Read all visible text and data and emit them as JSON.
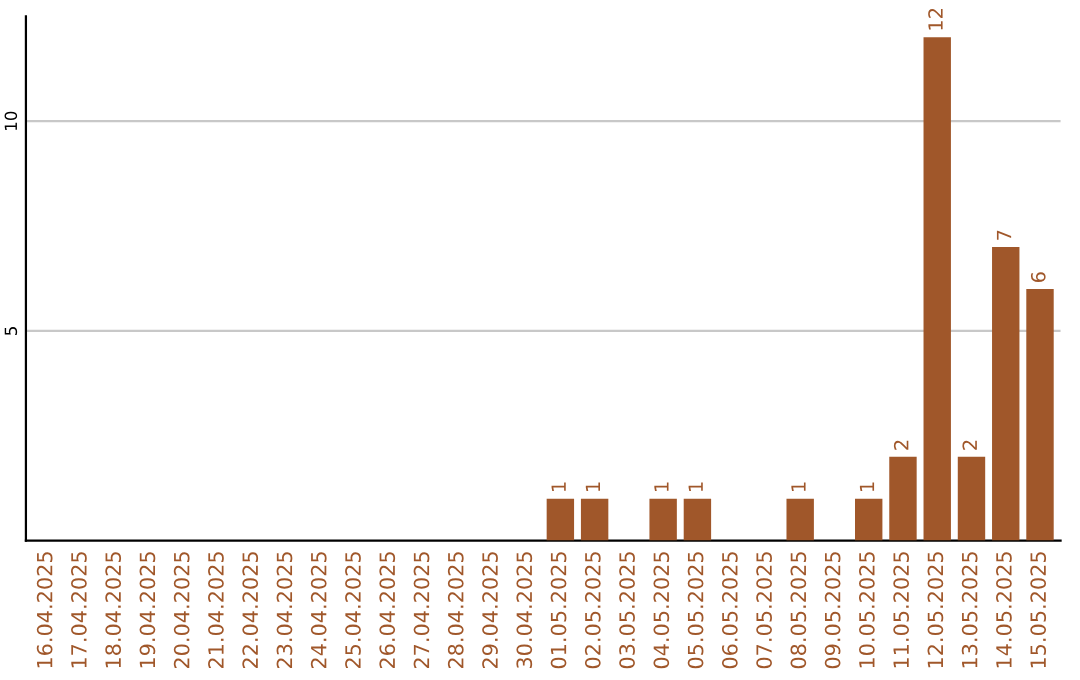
{
  "chart_data": {
    "type": "bar",
    "categories": [
      "16.04.2025",
      "17.04.2025",
      "18.04.2025",
      "19.04.2025",
      "20.04.2025",
      "21.04.2025",
      "22.04.2025",
      "23.04.2025",
      "24.04.2025",
      "25.04.2025",
      "26.04.2025",
      "27.04.2025",
      "28.04.2025",
      "29.04.2025",
      "30.04.2025",
      "01.05.2025",
      "02.05.2025",
      "03.05.2025",
      "04.05.2025",
      "05.05.2025",
      "06.05.2025",
      "07.05.2025",
      "08.05.2025",
      "09.05.2025",
      "10.05.2025",
      "11.05.2025",
      "12.05.2025",
      "13.05.2025",
      "14.05.2025",
      "15.05.2025"
    ],
    "values": [
      0,
      0,
      0,
      0,
      0,
      0,
      0,
      0,
      0,
      0,
      0,
      0,
      0,
      0,
      0,
      1,
      1,
      0,
      1,
      1,
      0,
      0,
      1,
      0,
      1,
      2,
      12,
      2,
      7,
      6
    ],
    "value_labels": [
      null,
      null,
      null,
      null,
      null,
      null,
      null,
      null,
      null,
      null,
      null,
      null,
      null,
      null,
      null,
      "1",
      "1",
      null,
      "1",
      "1",
      null,
      null,
      "1",
      null,
      "1",
      "2",
      "12",
      "2",
      "7",
      "6"
    ],
    "color": "#a0572a",
    "ylim": [
      0,
      12.5
    ],
    "yticks": [
      5,
      10
    ],
    "grid": "y"
  }
}
